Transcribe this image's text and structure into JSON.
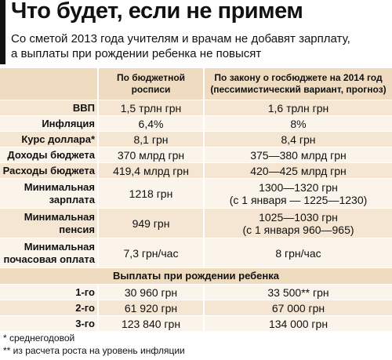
{
  "header": {
    "title": "Что будет, если не примем",
    "subtitle": [
      "Со сметой 2013 года учителям и врачам не добавят зарплату,",
      "а выплаты при рождении ребенка не повысят"
    ]
  },
  "table": {
    "columns": [
      [
        "По бюджетной",
        "росписи"
      ],
      [
        "По закону о госбюджете на 2014 год",
        "(пессимистический вариант, прогноз)"
      ]
    ],
    "rows": [
      [
        [
          "ВВП"
        ],
        [
          "1,5 трлн грн"
        ],
        [
          "1,6 трлн грн"
        ]
      ],
      [
        [
          "Инфляция"
        ],
        [
          "6,4%"
        ],
        [
          "8%"
        ]
      ],
      [
        [
          "Курс доллара*"
        ],
        [
          "8,1 грн"
        ],
        [
          "8,4 грн"
        ]
      ],
      [
        [
          "Доходы бюджета"
        ],
        [
          "370 млрд грн"
        ],
        [
          "375—380 млрд грн"
        ]
      ],
      [
        [
          "Расходы бюджета"
        ],
        [
          "419,4 млрд грн"
        ],
        [
          "420—425 млрд грн"
        ]
      ],
      [
        [
          "Минимальная",
          "зарплата"
        ],
        [
          "1218 грн"
        ],
        [
          "1300—1320 грн",
          "(с 1 января — 1225—1230)"
        ]
      ],
      [
        [
          "Минимальная",
          "пенсия"
        ],
        [
          "949 грн"
        ],
        [
          "1025—1030 грн",
          "(с 1 января 960—965)"
        ]
      ],
      [
        [
          "Минимальная",
          "почасовая оплата"
        ],
        [
          "7,3 грн/час"
        ],
        [
          "8 грн/час"
        ]
      ]
    ],
    "section": "Выплаты при рождении ребенка",
    "section_rows": [
      [
        [
          "1-го"
        ],
        [
          "30 960 грн"
        ],
        [
          "33 500** грн"
        ]
      ],
      [
        [
          "2-го"
        ],
        [
          "61 920 грн"
        ],
        [
          "67 000 грн"
        ]
      ],
      [
        [
          "3-го"
        ],
        [
          "123 840 грн"
        ],
        [
          "134 000 грн"
        ]
      ]
    ]
  },
  "footnotes": [
    "* среднегодовой",
    "** из расчета роста на уровень инфляции"
  ]
}
